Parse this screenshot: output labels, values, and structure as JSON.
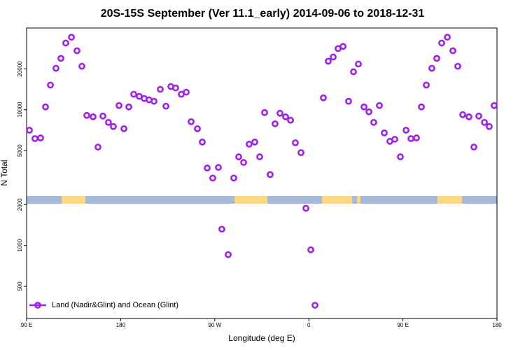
{
  "chart_data": {
    "type": "scatter",
    "title": "20S-15S September (Ver 11.1_early)   2014-09-06 to 2018-12-31",
    "x_label": "Longitude (deg E)",
    "y_label": "N Total",
    "log_y": true,
    "xlim": [
      90,
      540
    ],
    "ylim": [
      290,
      40000
    ],
    "xticks": [
      {
        "value": 90,
        "label": "90 E"
      },
      180,
      {
        "value": 270,
        "label": "90 W"
      },
      {
        "value": 360,
        "label": "0"
      },
      {
        "value": 450,
        "label": "90 E"
      },
      {
        "value": 540,
        "label": "180"
      }
    ],
    "yticks": [
      500,
      1000,
      2000,
      5000,
      10000,
      20000
    ],
    "legend_position": "bottom-left",
    "series": [
      {
        "name": "Land (Nadir&Glint) and Ocean (Glint)",
        "color": "#a020f0",
        "x": [
          92.7,
          98,
          103.4,
          108.1,
          112.8,
          118.1,
          122.8,
          127.5,
          132.9,
          138.2,
          142.9,
          147.6,
          153.6,
          158.3,
          163,
          168.3,
          173,
          178.4,
          183.1,
          187.8,
          192.5,
          197.8,
          202.5,
          207.2,
          211.9,
          217.9,
          223.3,
          228,
          232.6,
          238,
          242.7,
          247.4,
          253.4,
          258.1,
          262.8,
          268.1,
          273.5,
          276.8,
          282.9,
          288.2,
          292.9,
          297.6,
          302.9,
          308.3,
          313,
          317.7,
          323,
          327.7,
          332.4,
          337.8,
          342.5,
          347.1,
          352.5,
          357.2,
          361.9,
          365.9,
          373.9,
          378.6,
          383.3,
          388,
          392.7,
          398,
          402.7,
          407.4,
          412.8,
          417.5,
          422.1,
          427.5,
          432.2,
          437.5,
          442.2,
          447.6,
          453,
          457.7,
          463,
          467.7,
          472.4,
          477.7,
          482.4,
          487.1,
          492.5,
          497.8,
          502.5,
          507.2,
          513.2,
          517.9,
          522.6,
          528,
          532.6,
          537.3
        ],
        "values": [
          7070,
          6130,
          6200,
          10490,
          15200,
          20200,
          23900,
          31000,
          34200,
          27200,
          20900,
          9090,
          8870,
          5310,
          8980,
          8070,
          7520,
          10740,
          7250,
          10490,
          13000,
          12540,
          12100,
          11820,
          11540,
          14130,
          10620,
          14820,
          14470,
          13000,
          13470,
          8160,
          7250,
          5780,
          3720,
          3140,
          3760,
          1320,
          857,
          3140,
          4500,
          4090,
          5580,
          5780,
          4500,
          9530,
          3330,
          7880,
          9420,
          8870,
          8370,
          5710,
          4830,
          1880,
          930,
          363,
          12240,
          22800,
          24460,
          28230,
          29270,
          11540,
          19040,
          21700,
          10490,
          9650,
          8070,
          10740,
          6750,
          5850,
          6060,
          4500,
          7070,
          6130,
          6200,
          10490,
          15200,
          20200,
          23900,
          31000,
          34200,
          27200,
          20900,
          9200,
          8870,
          5310,
          8980,
          8070,
          7520,
          10740
        ]
      }
    ]
  }
}
